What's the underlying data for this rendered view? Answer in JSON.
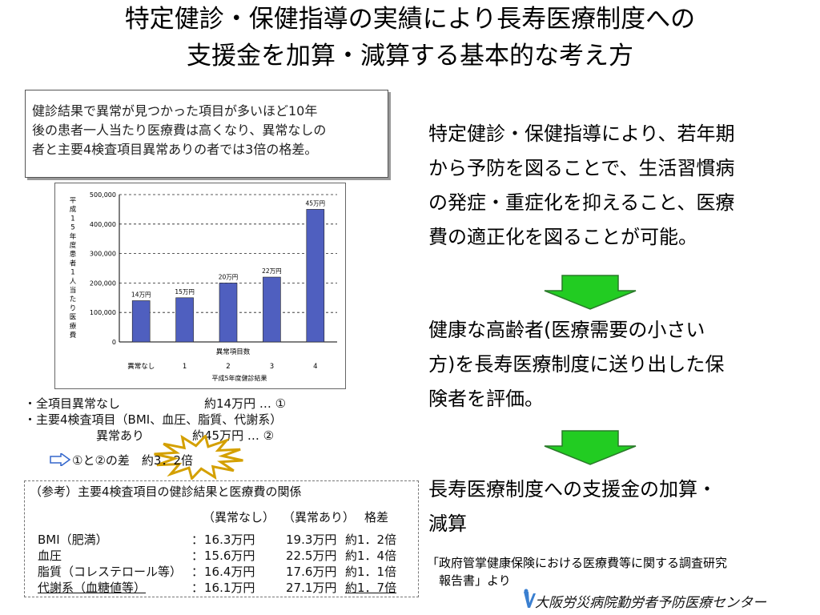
{
  "title": {
    "line1": "特定健診・保健指導の実績により長寿医療制度への",
    "line2": "支援金を加算・減算する基本的な考え方"
  },
  "summary": {
    "line1": "健診結果で異常が見つかった項目が多いほど10年",
    "line2": "後の患者一人当たり医療費は高くなり、異常なしの",
    "line3": "者と主要4検査項目異常ありの者では3倍の格差。"
  },
  "chart_data": {
    "type": "bar",
    "ylabel": "平成15年度患者1人当たり医療費",
    "xlabel": "異常項目数",
    "x_note": "平成5年度健診結果",
    "categories": [
      "異常なし",
      "1",
      "2",
      "3",
      "4"
    ],
    "values": [
      140000,
      150000,
      200000,
      220000,
      450000
    ],
    "data_labels": [
      "14万円",
      "15万円",
      "20万円",
      "22万円",
      "45万円"
    ],
    "yticks": [
      "0",
      "100,000",
      "200,000",
      "300,000",
      "400,000",
      "500,000"
    ],
    "ylim": [
      0,
      500000
    ],
    "grid": true,
    "bar_color": "#4f5fbf"
  },
  "bullets": {
    "b1": "・全項目異常なし　　　　　　　約14万円 … ①",
    "b2": "・主要4検査項目（BMI、血圧、脂質、代謝系）",
    "b3": "　　　　　　異常あり　　　　約45万円 … ②",
    "diff": "①と②の差　約3．2倍"
  },
  "reference": {
    "heading": "（参考）主要4検査項目の健診結果と医療費の関係",
    "col_normal": "（異常なし）",
    "col_abnormal": "（異常あり）",
    "col_ratio": "格差",
    "rows": [
      {
        "item": "BMI（肥満）",
        "sep": "：",
        "normal": "16.3万円",
        "abnormal": "19.3万円",
        "ratio": "約1．2倍"
      },
      {
        "item": "血圧",
        "sep": "：",
        "normal": "15.6万円",
        "abnormal": "22.5万円",
        "ratio": "約1．4倍"
      },
      {
        "item": "脂質（コレステロール等）",
        "sep": "：",
        "normal": "16.4万円",
        "abnormal": "17.6万円",
        "ratio": "約1．1倍"
      },
      {
        "item": "代謝系（血糖値等）",
        "sep": "：",
        "normal": "16.1万円",
        "abnormal": "27.1万円",
        "ratio": "約1．7倍"
      }
    ]
  },
  "right": {
    "p1a": "特定健診・保健指導により、若年期",
    "p1b": "から予防を図ることで、生活習慣病",
    "p1c": "の発症・重症化を抑えること、医療",
    "p1d": "費の適正化を図ることが可能。",
    "p2a": "健康な高齢者(医療需要の小さい",
    "p2b": "方)を長寿医療制度に送り出した保",
    "p2c": "険者を評価。",
    "p3a": "長寿医療制度への支援金の加算・",
    "p3b": "減算"
  },
  "footnote": {
    "line1": "「政府管掌健康保険における医療費等に関する調査研究",
    "line2": "　報告書」より"
  },
  "organization": "大阪労災病院勤労者予防医療センター",
  "colors": {
    "arrow_fill": "#22cc22",
    "arrow_stroke": "#2a7a2a",
    "star_fill": "#ffffff",
    "star_stroke": "#d4a000",
    "pointer_arrow": "#3366cc",
    "logo": "#3a7fd0"
  }
}
